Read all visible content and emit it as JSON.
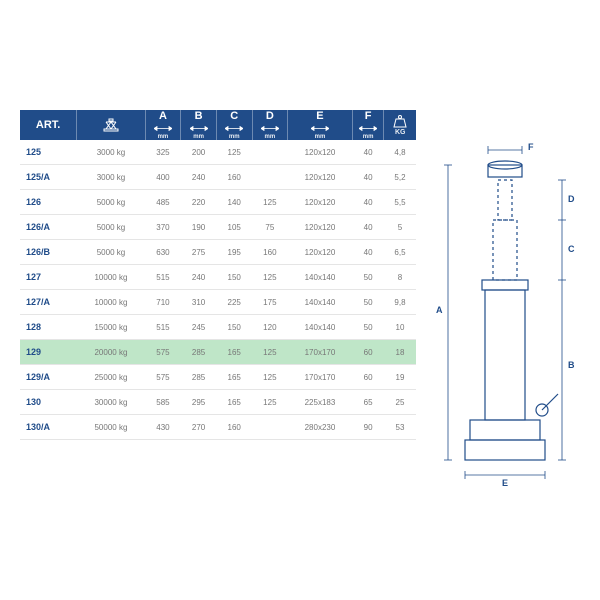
{
  "colors": {
    "header_bg": "#204c89",
    "header_fg": "#ffffff",
    "art_fg": "#204c89",
    "cell_fg": "#777777",
    "row_border": "#e5e5e5",
    "highlight_bg": "#bfe6c8",
    "diagram_stroke": "#204c89"
  },
  "headers": [
    {
      "key": "art",
      "label": "ART.",
      "unit": "",
      "icon": ""
    },
    {
      "key": "cap",
      "label": "",
      "unit": "",
      "icon": "jack"
    },
    {
      "key": "A",
      "label": "A",
      "unit": "mm",
      "icon": "arrows"
    },
    {
      "key": "B",
      "label": "B",
      "unit": "mm",
      "icon": "arrows"
    },
    {
      "key": "C",
      "label": "C",
      "unit": "mm",
      "icon": "arrows"
    },
    {
      "key": "D",
      "label": "D",
      "unit": "mm",
      "icon": "arrows"
    },
    {
      "key": "E",
      "label": "E",
      "unit": "mm",
      "icon": "arrows"
    },
    {
      "key": "F",
      "label": "F",
      "unit": "mm",
      "icon": "arrows"
    },
    {
      "key": "kg",
      "label": "KG",
      "unit": "",
      "icon": "weight"
    }
  ],
  "rows": [
    {
      "art": "125",
      "cap": "3000 kg",
      "A": "325",
      "B": "200",
      "C": "125",
      "D": "",
      "E": "120x120",
      "F": "40",
      "kg": "4,8",
      "hl": false
    },
    {
      "art": "125/A",
      "cap": "3000 kg",
      "A": "400",
      "B": "240",
      "C": "160",
      "D": "",
      "E": "120x120",
      "F": "40",
      "kg": "5,2",
      "hl": false
    },
    {
      "art": "126",
      "cap": "5000 kg",
      "A": "485",
      "B": "220",
      "C": "140",
      "D": "125",
      "E": "120x120",
      "F": "40",
      "kg": "5,5",
      "hl": false
    },
    {
      "art": "126/A",
      "cap": "5000 kg",
      "A": "370",
      "B": "190",
      "C": "105",
      "D": "75",
      "E": "120x120",
      "F": "40",
      "kg": "5",
      "hl": false
    },
    {
      "art": "126/B",
      "cap": "5000 kg",
      "A": "630",
      "B": "275",
      "C": "195",
      "D": "160",
      "E": "120x120",
      "F": "40",
      "kg": "6,5",
      "hl": false
    },
    {
      "art": "127",
      "cap": "10000 kg",
      "A": "515",
      "B": "240",
      "C": "150",
      "D": "125",
      "E": "140x140",
      "F": "50",
      "kg": "8",
      "hl": false
    },
    {
      "art": "127/A",
      "cap": "10000 kg",
      "A": "710",
      "B": "310",
      "C": "225",
      "D": "175",
      "E": "140x140",
      "F": "50",
      "kg": "9,8",
      "hl": false
    },
    {
      "art": "128",
      "cap": "15000 kg",
      "A": "515",
      "B": "245",
      "C": "150",
      "D": "120",
      "E": "140x140",
      "F": "50",
      "kg": "10",
      "hl": false
    },
    {
      "art": "129",
      "cap": "20000 kg",
      "A": "575",
      "B": "285",
      "C": "165",
      "D": "125",
      "E": "170x170",
      "F": "60",
      "kg": "18",
      "hl": true
    },
    {
      "art": "129/A",
      "cap": "25000 kg",
      "A": "575",
      "B": "285",
      "C": "165",
      "D": "125",
      "E": "170x170",
      "F": "60",
      "kg": "19",
      "hl": false
    },
    {
      "art": "130",
      "cap": "30000 kg",
      "A": "585",
      "B": "295",
      "C": "165",
      "D": "125",
      "E": "225x183",
      "F": "65",
      "kg": "25",
      "hl": false
    },
    {
      "art": "130/A",
      "cap": "50000 kg",
      "A": "430",
      "B": "270",
      "C": "160",
      "D": "",
      "E": "280x230",
      "F": "90",
      "kg": "53",
      "hl": false
    }
  ],
  "diagram_labels": {
    "A": "A",
    "B": "B",
    "C": "C",
    "D": "D",
    "E": "E",
    "F": "F"
  }
}
